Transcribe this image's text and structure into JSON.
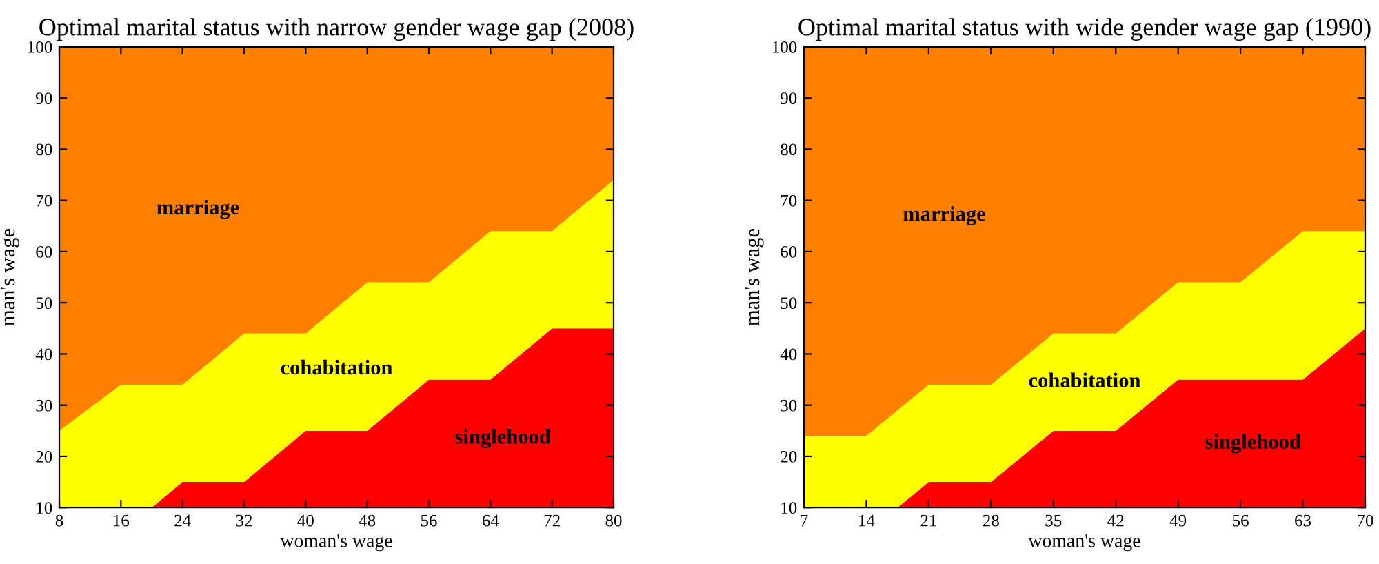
{
  "chart_data": [
    {
      "type": "area",
      "stacked": true,
      "title": "Optimal marital status with narrow gender wage gap (2008)",
      "xlabel": "woman's wage",
      "ylabel": "man's wage",
      "x": [
        8,
        16,
        20,
        24,
        32,
        40,
        48,
        56,
        64,
        72,
        80
      ],
      "series": [
        {
          "name": "singlehood",
          "color": "#ff0000",
          "values": [
            10,
            10,
            10,
            15,
            15,
            25,
            25,
            35,
            35,
            45,
            45
          ]
        },
        {
          "name": "cohabitation",
          "color": "#ffff00",
          "values": [
            15,
            24,
            24,
            19,
            29,
            19,
            29,
            19,
            29,
            19,
            29
          ]
        },
        {
          "name": "marriage",
          "color": "#ff8000",
          "values": [
            75,
            66,
            66,
            66,
            56,
            56,
            46,
            46,
            36,
            36,
            26
          ]
        }
      ],
      "xlim": [
        8,
        80
      ],
      "xticks": [
        8,
        16,
        24,
        32,
        40,
        48,
        56,
        64,
        72,
        80
      ],
      "ylim": [
        10,
        100
      ],
      "yticks": [
        10,
        20,
        30,
        40,
        50,
        60,
        70,
        80,
        90,
        100
      ]
    },
    {
      "type": "area",
      "stacked": true,
      "title": "Optimal marital status with wide gender wage gap (1990)",
      "xlabel": "woman's wage",
      "ylabel": "man's wage",
      "x": [
        7,
        14,
        17.5,
        21,
        28,
        35,
        42,
        49,
        56,
        63,
        70
      ],
      "series": [
        {
          "name": "singlehood",
          "color": "#ff0000",
          "values": [
            10,
            10,
            10,
            15,
            15,
            25,
            25,
            35,
            35,
            35,
            45
          ]
        },
        {
          "name": "cohabitation",
          "color": "#ffff00",
          "values": [
            14,
            14,
            19,
            19,
            19,
            19,
            19,
            19,
            19,
            29,
            19
          ]
        },
        {
          "name": "marriage",
          "color": "#ff8000",
          "values": [
            76,
            76,
            71,
            66,
            66,
            56,
            56,
            46,
            46,
            36,
            36
          ]
        }
      ],
      "xlim": [
        7,
        70
      ],
      "xticks": [
        7,
        14,
        21,
        28,
        35,
        42,
        49,
        56,
        63,
        70
      ],
      "ylim": [
        10,
        100
      ],
      "yticks": [
        10,
        20,
        30,
        40,
        50,
        60,
        70,
        80,
        90,
        100
      ]
    }
  ]
}
